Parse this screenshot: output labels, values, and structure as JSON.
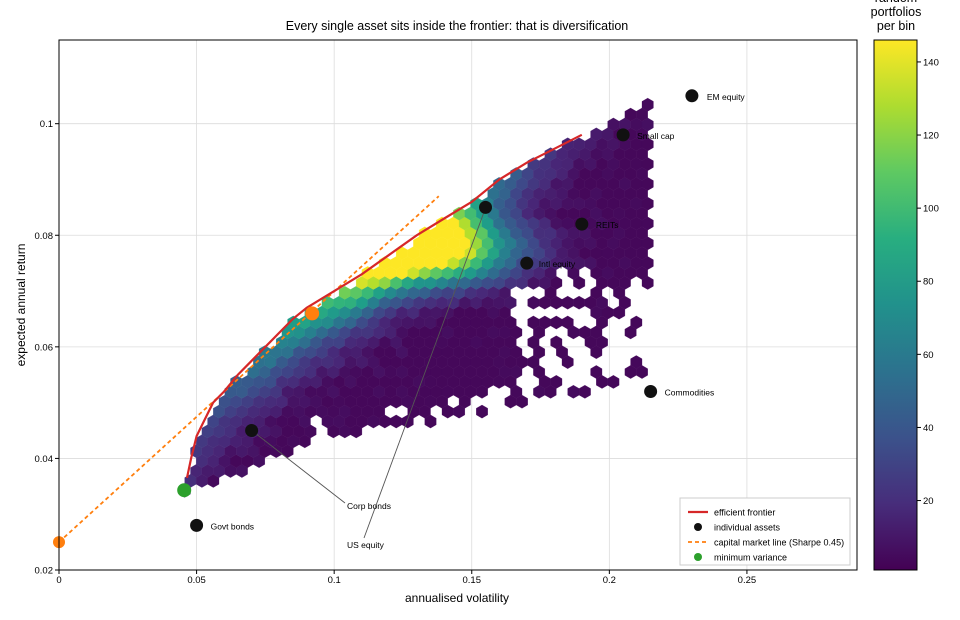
{
  "chart_data": {
    "type": "hexbin-scatter",
    "title": "Every single asset sits inside the frontier: that is diversification",
    "xlabel": "annualised volatility",
    "ylabel": "expected annual return",
    "xlim": [
      0,
      0.29
    ],
    "ylim": [
      0.02,
      0.115
    ],
    "x_ticks": [
      0,
      0.05,
      0.1,
      0.15,
      0.2,
      0.25
    ],
    "x_tick_labels": [
      "0",
      "0.05",
      "0.1",
      "0.15",
      "0.2",
      "0.25"
    ],
    "y_ticks": [
      0.02,
      0.04,
      0.06,
      0.08,
      0.1
    ],
    "y_tick_labels": [
      "0.02",
      "0.04",
      "0.06",
      "0.08",
      "0.1"
    ],
    "grid": true,
    "colorbar": {
      "label": "random\nportfolios\nper bin",
      "range": [
        1,
        146
      ],
      "ticks": [
        20,
        40,
        60,
        80,
        100,
        120,
        140
      ],
      "tick_labels": [
        "20",
        "40",
        "60",
        "80",
        "100",
        "120",
        "140"
      ],
      "colormap": "viridis"
    },
    "legend": {
      "position": "bottom-right",
      "entries": [
        {
          "label": "efficient frontier",
          "color": "#d62728",
          "style": "line"
        },
        {
          "label": "individual assets",
          "color": "#111111",
          "style": "dot"
        },
        {
          "label": "capital market line (Sharpe 0.45)",
          "color": "#ff7f0e",
          "style": "dashed"
        },
        {
          "label": "minimum variance",
          "color": "#2ca02c",
          "style": "dot"
        }
      ]
    },
    "assets": [
      {
        "name": "Govt bonds",
        "x": 0.05,
        "y": 0.028
      },
      {
        "name": "Corp bonds",
        "x": 0.07,
        "y": 0.045
      },
      {
        "name": "US equity",
        "x": 0.155,
        "y": 0.085
      },
      {
        "name": "Intl equity",
        "x": 0.17,
        "y": 0.075
      },
      {
        "name": "REITs",
        "x": 0.19,
        "y": 0.082
      },
      {
        "name": "Small cap",
        "x": 0.205,
        "y": 0.098
      },
      {
        "name": "EM equity",
        "x": 0.23,
        "y": 0.105
      },
      {
        "name": "Commodities",
        "x": 0.215,
        "y": 0.052
      }
    ],
    "efficient_frontier": {
      "x": [
        0.0465,
        0.048,
        0.05,
        0.052,
        0.056,
        0.06,
        0.065,
        0.07,
        0.075,
        0.08,
        0.085,
        0.09,
        0.095,
        0.1,
        0.11,
        0.12,
        0.13,
        0.14,
        0.15,
        0.16,
        0.17,
        0.18,
        0.19
      ],
      "y": [
        0.0365,
        0.04,
        0.044,
        0.046,
        0.05,
        0.052,
        0.055,
        0.0575,
        0.06,
        0.0625,
        0.065,
        0.067,
        0.0685,
        0.07,
        0.073,
        0.0765,
        0.08,
        0.083,
        0.086,
        0.09,
        0.093,
        0.0955,
        0.098
      ]
    },
    "capital_market_line": {
      "x": [
        0,
        0.138
      ],
      "y": [
        0.025,
        0.087
      ]
    },
    "tangency_point": {
      "x": 0.092,
      "y": 0.066
    },
    "minimum_variance": {
      "x": 0.0455,
      "y": 0.0343
    },
    "risk_free_point": {
      "x": 0,
      "y": 0.025
    }
  }
}
